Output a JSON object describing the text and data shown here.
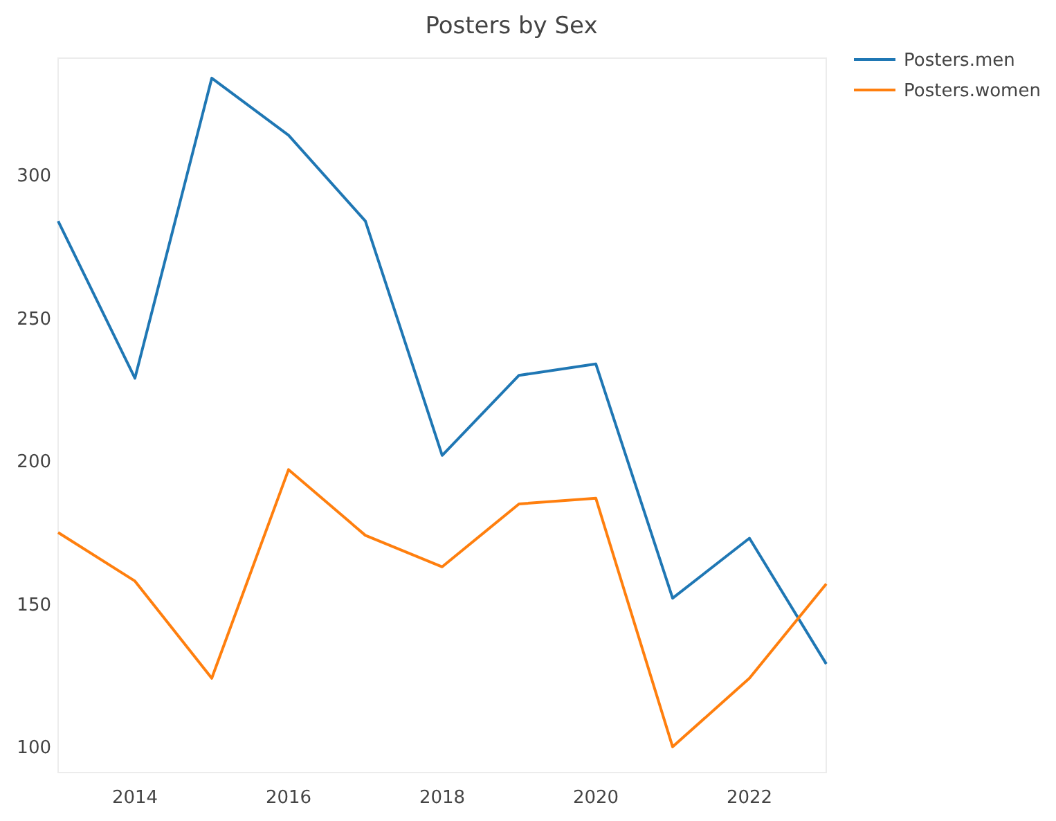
{
  "chart_data": {
    "type": "line",
    "title": "Posters by Sex",
    "x": [
      2013,
      2014,
      2015,
      2016,
      2017,
      2018,
      2019,
      2020,
      2021,
      2022,
      2023
    ],
    "series": [
      {
        "name": "Posters.men",
        "color": "#1f77b4",
        "values": [
          284,
          229,
          334,
          314,
          284,
          202,
          230,
          234,
          152,
          173,
          129
        ]
      },
      {
        "name": "Posters.women",
        "color": "#ff7f0e",
        "values": [
          175,
          158,
          124,
          197,
          174,
          163,
          185,
          187,
          100,
          124,
          157
        ]
      }
    ],
    "xlim": [
      2013,
      2023
    ],
    "ylim": [
      91,
      341
    ],
    "xticks": [
      2014,
      2016,
      2018,
      2020,
      2022
    ],
    "yticks": [
      100,
      150,
      200,
      250,
      300
    ],
    "grid": false,
    "legend": "top right",
    "line_style": "solid",
    "marker": "none"
  }
}
